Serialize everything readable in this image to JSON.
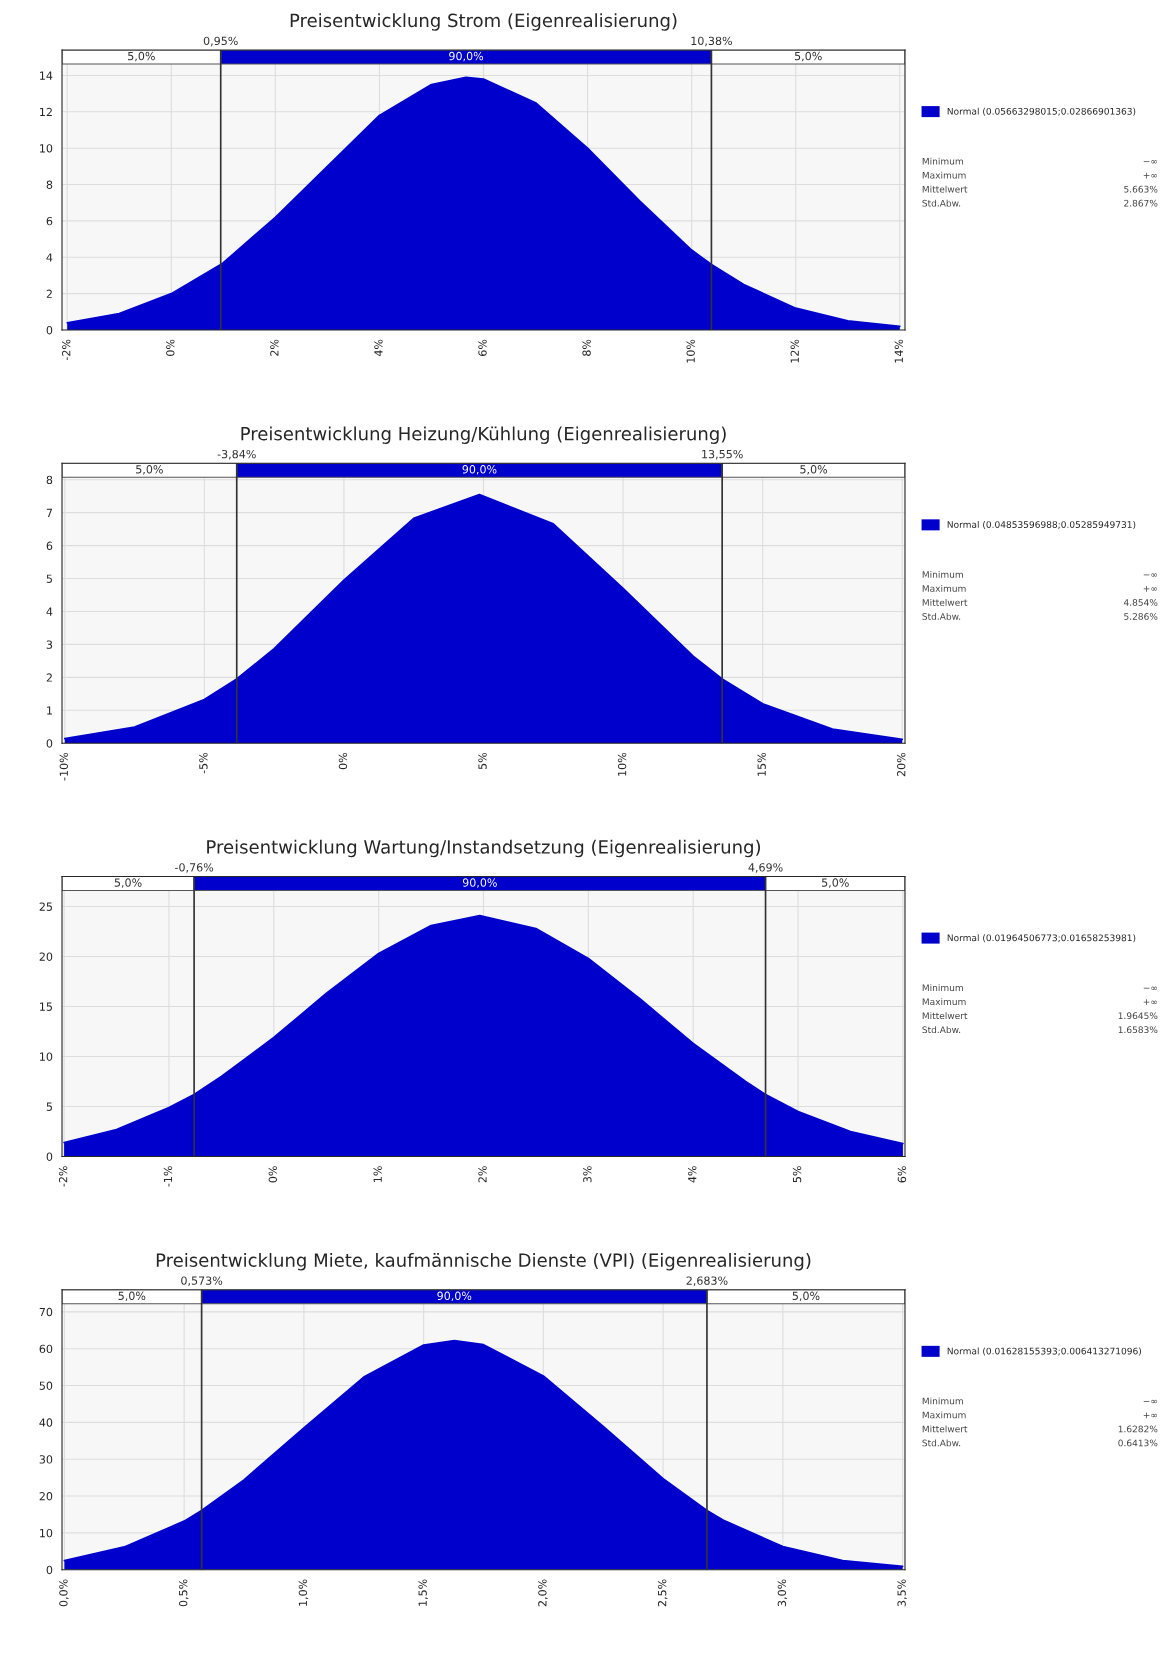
{
  "chart_data": [
    {
      "type": "area",
      "title": "Preisentwicklung Strom (Eigenrealisierung)",
      "x": [
        -2,
        -1,
        0,
        0.95,
        1,
        2,
        3,
        4,
        5,
        5.663,
        6,
        7,
        8,
        9,
        10,
        10.38,
        11,
        12,
        13,
        14
      ],
      "series": [
        {
          "name": "Normal (0.05663298015;0.02866901363)",
          "color": "#0000cc",
          "values": [
            0.4,
            0.9,
            2.0,
            3.6,
            3.7,
            6.2,
            9.0,
            11.8,
            13.5,
            13.9,
            13.8,
            12.5,
            10.0,
            7.1,
            4.4,
            3.6,
            2.5,
            1.2,
            0.5,
            0.2
          ]
        }
      ],
      "xlim": [
        -2.1,
        14.1
      ],
      "xticks": [
        {
          "value": -2,
          "label": "-2%"
        },
        {
          "value": 0,
          "label": "0%"
        },
        {
          "value": 2,
          "label": "2%"
        },
        {
          "value": 4,
          "label": "4%"
        },
        {
          "value": 6,
          "label": "6%"
        },
        {
          "value": 8,
          "label": "8%"
        },
        {
          "value": 10,
          "label": "10%"
        },
        {
          "value": 12,
          "label": "12%"
        },
        {
          "value": 14,
          "label": "14%"
        }
      ],
      "ylim": [
        0,
        15.4
      ],
      "yticks": [
        0,
        2,
        4,
        6,
        8,
        10,
        12,
        14
      ],
      "ref_lines": [
        {
          "axis": "x",
          "value": 0.95,
          "label": "0,95%",
          "color": "#333333"
        },
        {
          "axis": "x",
          "value": 10.38,
          "label": "10,38%",
          "color": "#333333"
        }
      ],
      "bands": [
        {
          "axis": "x",
          "from": -2.1,
          "to": 0.95,
          "label": "5,0%",
          "color": "#ffffff"
        },
        {
          "axis": "x",
          "from": 0.95,
          "to": 10.38,
          "label": "90,0%",
          "color": "#0000cc"
        },
        {
          "axis": "x",
          "from": 10.38,
          "to": 14.1,
          "label": "5,0%",
          "color": "#ffffff"
        }
      ],
      "annotations": [
        "Minimum",
        "−∞",
        "Maximum",
        "+∞",
        "Mittelwert",
        "5.663%",
        "Std.Abw.",
        "2.867%"
      ],
      "grid": true,
      "legend": "right"
    },
    {
      "type": "area",
      "title": "Preisentwicklung Heizung/Kühlung (Eigenrealisierung)",
      "x": [
        -10,
        -7.5,
        -5,
        -3.84,
        -2.5,
        0,
        2.5,
        4.854,
        7.5,
        10,
        12.5,
        13.55,
        15,
        17.5,
        20
      ],
      "series": [
        {
          "name": "Normal (0.04853596988;0.05285949731)",
          "color": "#0000cc",
          "values": [
            0.14,
            0.49,
            1.33,
            1.95,
            2.87,
            4.95,
            6.83,
            7.55,
            6.66,
            4.7,
            2.65,
            1.95,
            1.2,
            0.43,
            0.12
          ]
        }
      ],
      "xlim": [
        -10.1,
        20.1
      ],
      "xticks": [
        {
          "value": -10,
          "label": "-10%"
        },
        {
          "value": -5,
          "label": "-5%"
        },
        {
          "value": 0,
          "label": "0%"
        },
        {
          "value": 5,
          "label": "5%"
        },
        {
          "value": 10,
          "label": "10%"
        },
        {
          "value": 15,
          "label": "15%"
        },
        {
          "value": 20,
          "label": "20%"
        }
      ],
      "ylim": [
        0,
        8.5
      ],
      "yticks": [
        0,
        1,
        2,
        3,
        4,
        5,
        6,
        7,
        8
      ],
      "ref_lines": [
        {
          "axis": "x",
          "value": -3.84,
          "label": "-3,84%",
          "color": "#333333"
        },
        {
          "axis": "x",
          "value": 13.55,
          "label": "13,55%",
          "color": "#333333"
        }
      ],
      "bands": [
        {
          "axis": "x",
          "from": -10.1,
          "to": -3.84,
          "label": "5,0%",
          "color": "#ffffff"
        },
        {
          "axis": "x",
          "from": -3.84,
          "to": 13.55,
          "label": "90,0%",
          "color": "#0000cc"
        },
        {
          "axis": "x",
          "from": 13.55,
          "to": 20.1,
          "label": "5,0%",
          "color": "#ffffff"
        }
      ],
      "annotations": [
        "Minimum",
        "−∞",
        "Maximum",
        "+∞",
        "Mittelwert",
        "4.854%",
        "Std.Abw.",
        "5.286%"
      ],
      "grid": true,
      "legend": "right"
    },
    {
      "type": "area",
      "title": "Preisentwicklung Wartung/Instandsetzung (Eigenrealisierung)",
      "x": [
        -2,
        -1.5,
        -1,
        -0.76,
        -0.5,
        0,
        0.5,
        1,
        1.5,
        1.9645,
        2.5,
        3,
        3.5,
        4,
        4.5,
        4.69,
        5,
        5.5,
        6
      ],
      "series": [
        {
          "name": "Normal (0.01964506773;0.01658253981)",
          "color": "#0000cc",
          "values": [
            1.4,
            2.7,
            4.9,
            6.2,
            8.0,
            11.9,
            16.3,
            20.3,
            23.1,
            24.1,
            22.8,
            19.8,
            15.7,
            11.3,
            7.5,
            6.2,
            4.5,
            2.5,
            1.3
          ]
        }
      ],
      "xlim": [
        -2.02,
        6.02
      ],
      "xticks": [
        {
          "value": -2,
          "label": "-2%"
        },
        {
          "value": -1,
          "label": "-1%"
        },
        {
          "value": 0,
          "label": "0%"
        },
        {
          "value": 1,
          "label": "1%"
        },
        {
          "value": 2,
          "label": "2%"
        },
        {
          "value": 3,
          "label": "3%"
        },
        {
          "value": 4,
          "label": "4%"
        },
        {
          "value": 5,
          "label": "5%"
        },
        {
          "value": 6,
          "label": "6%"
        }
      ],
      "ylim": [
        0,
        28
      ],
      "yticks": [
        0,
        5,
        10,
        15,
        20,
        25
      ],
      "ref_lines": [
        {
          "axis": "x",
          "value": -0.76,
          "label": "-0,76%",
          "color": "#333333"
        },
        {
          "axis": "x",
          "value": 4.69,
          "label": "4,69%",
          "color": "#333333"
        }
      ],
      "bands": [
        {
          "axis": "x",
          "from": -2.02,
          "to": -0.76,
          "label": "5,0%",
          "color": "#ffffff"
        },
        {
          "axis": "x",
          "from": -0.76,
          "to": 4.69,
          "label": "90,0%",
          "color": "#0000cc"
        },
        {
          "axis": "x",
          "from": 4.69,
          "to": 6.02,
          "label": "5,0%",
          "color": "#ffffff"
        }
      ],
      "annotations": [
        "Minimum",
        "−∞",
        "Maximum",
        "+∞",
        "Mittelwert",
        "1.9645%",
        "Std.Abw.",
        "1.6583%"
      ],
      "grid": true,
      "legend": "right"
    },
    {
      "type": "area",
      "title": "Preisentwicklung Miete, kaufmännische Dienste (VPI) (Eigenrealisierung)",
      "x": [
        0,
        0.25,
        0.5,
        0.573,
        0.75,
        1,
        1.25,
        1.5,
        1.6282,
        1.75,
        2,
        2.25,
        2.5,
        2.683,
        2.75,
        3,
        3.25,
        3.5
      ],
      "series": [
        {
          "name": "Normal (0.01628155393;0.006413271096)",
          "color": "#0000cc",
          "values": [
            2.5,
            6.2,
            13.2,
            16.1,
            24.4,
            38.5,
            52.3,
            61.0,
            62.2,
            61.1,
            52.6,
            38.9,
            24.7,
            16.1,
            13.5,
            6.3,
            2.5,
            0.9
          ]
        }
      ],
      "xlim": [
        -0.01,
        3.51
      ],
      "xticks": [
        {
          "value": 0,
          "label": "0,0%"
        },
        {
          "value": 0.5,
          "label": "0,5%"
        },
        {
          "value": 1,
          "label": "1,0%"
        },
        {
          "value": 1.5,
          "label": "1,5%"
        },
        {
          "value": 2,
          "label": "2,0%"
        },
        {
          "value": 2.5,
          "label": "2,5%"
        },
        {
          "value": 3,
          "label": "3,0%"
        },
        {
          "value": 3.5,
          "label": "3,5%"
        }
      ],
      "ylim": [
        0,
        76
      ],
      "yticks": [
        0,
        10,
        20,
        30,
        40,
        50,
        60,
        70
      ],
      "ref_lines": [
        {
          "axis": "x",
          "value": 0.573,
          "label": "0,573%",
          "color": "#333333"
        },
        {
          "axis": "x",
          "value": 2.683,
          "label": "2,683%",
          "color": "#333333"
        }
      ],
      "bands": [
        {
          "axis": "x",
          "from": -0.01,
          "to": 0.573,
          "label": "5,0%",
          "color": "#ffffff"
        },
        {
          "axis": "x",
          "from": 0.573,
          "to": 2.683,
          "label": "90,0%",
          "color": "#0000cc"
        },
        {
          "axis": "x",
          "from": 2.683,
          "to": 3.51,
          "label": "5,0%",
          "color": "#ffffff"
        }
      ],
      "annotations": [
        "Minimum",
        "−∞",
        "Maximum",
        "+∞",
        "Mittelwert",
        "1.6282%",
        "Std.Abw.",
        "0.6413%"
      ],
      "grid": true,
      "legend": "right"
    }
  ]
}
